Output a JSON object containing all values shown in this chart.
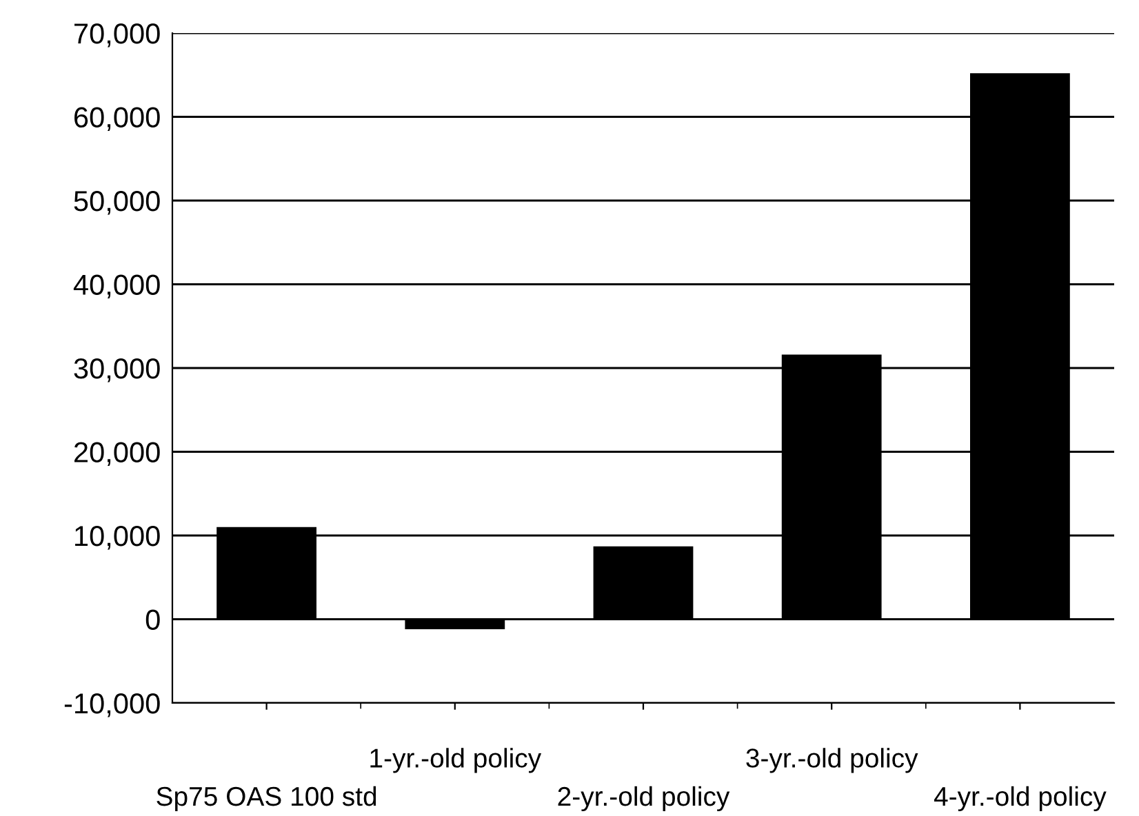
{
  "chart_data": {
    "type": "bar",
    "categories": [
      "Sp75 OAS 100 std",
      "1-yr.-old policy",
      "2-yr.-old policy",
      "3-yr.-old policy",
      "4-yr.-old policy"
    ],
    "values": [
      11000,
      -1200,
      8700,
      31600,
      65200
    ],
    "color": "#000000",
    "ylim": [
      -10000,
      70000
    ],
    "yticks": [
      {
        "value": -10000,
        "label": "-10,000"
      },
      0,
      {
        "value": 10000,
        "label": "10,000"
      },
      {
        "value": 20000,
        "label": "20,000"
      },
      {
        "value": 30000,
        "label": "30,000"
      },
      {
        "value": 40000,
        "label": "40,000"
      },
      {
        "value": 50000,
        "label": "50,000"
      },
      {
        "value": 60000,
        "label": "60,000"
      },
      {
        "value": 70000,
        "label": "70,000"
      }
    ],
    "grid": "y",
    "legend": false
  }
}
